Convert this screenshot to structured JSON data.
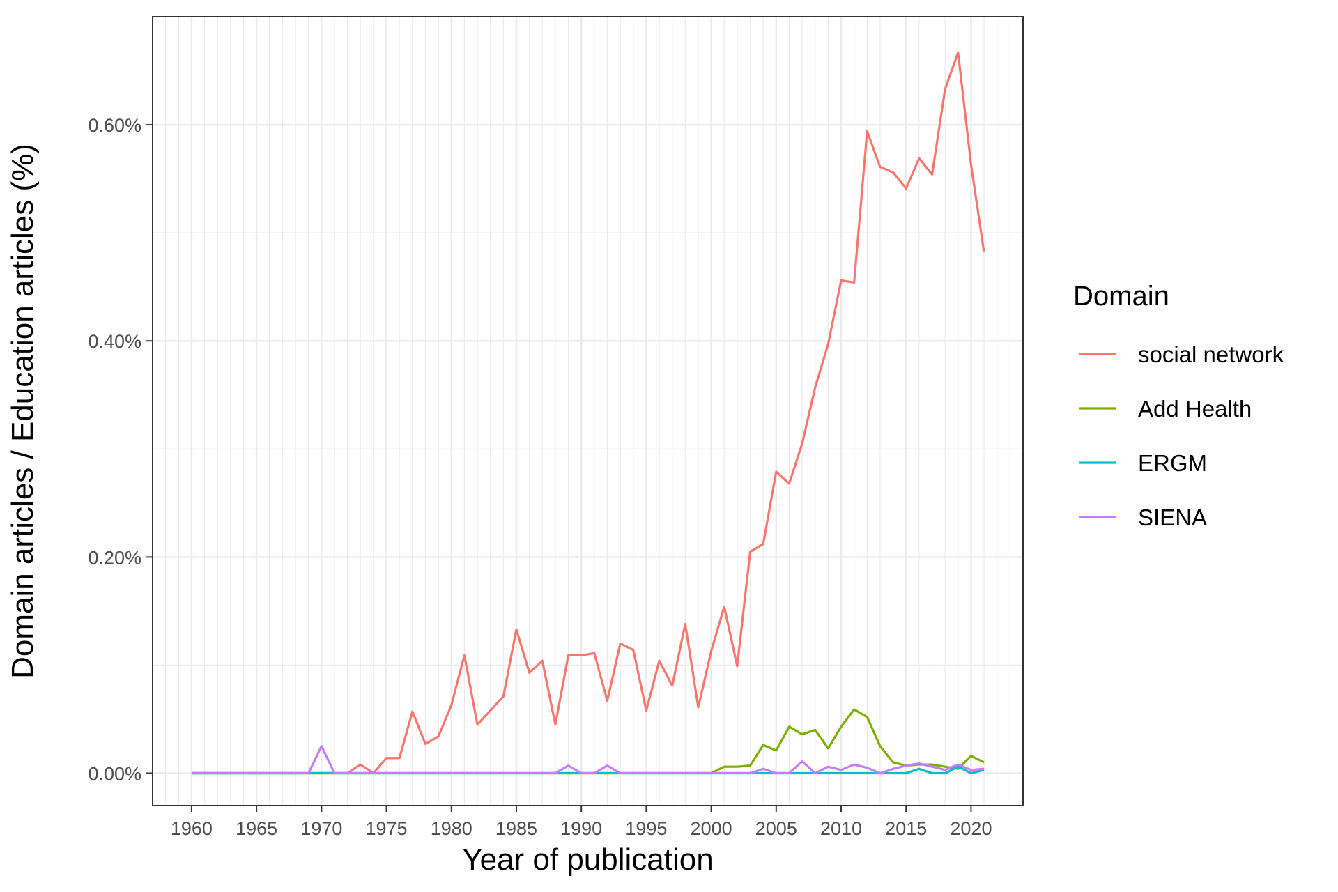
{
  "chart_data": {
    "type": "line",
    "title": "",
    "xlabel": "Year of publication",
    "ylabel": "Domain articles / Education articles (%)",
    "xlim": [
      1957,
      2024
    ],
    "ylim": [
      -0.03,
      0.7
    ],
    "x_ticks": [
      1960,
      1965,
      1970,
      1975,
      1980,
      1985,
      1990,
      1995,
      2000,
      2005,
      2010,
      2015,
      2020
    ],
    "x_tick_labels": [
      "1960",
      "1965",
      "1970",
      "1975",
      "1980",
      "1985",
      "1990",
      "1995",
      "2000",
      "2005",
      "2010",
      "2015",
      "2020"
    ],
    "y_ticks": [
      0,
      0.2,
      0.4,
      0.6
    ],
    "y_tick_labels": [
      "0.00%",
      "0.20%",
      "0.40%",
      "0.60%"
    ],
    "grid": true,
    "legend": {
      "title": "Domain",
      "position": "right"
    },
    "x": [
      1960,
      1961,
      1962,
      1963,
      1964,
      1965,
      1966,
      1967,
      1968,
      1969,
      1970,
      1971,
      1972,
      1973,
      1974,
      1975,
      1976,
      1977,
      1978,
      1979,
      1980,
      1981,
      1982,
      1983,
      1984,
      1985,
      1986,
      1987,
      1988,
      1989,
      1990,
      1991,
      1992,
      1993,
      1994,
      1995,
      1996,
      1997,
      1998,
      1999,
      2000,
      2001,
      2002,
      2003,
      2004,
      2005,
      2006,
      2007,
      2008,
      2009,
      2010,
      2011,
      2012,
      2013,
      2014,
      2015,
      2016,
      2017,
      2018,
      2019,
      2020,
      2021
    ],
    "series": [
      {
        "name": "social network",
        "color": "#F8766D",
        "values": [
          0,
          0,
          0,
          0,
          0,
          0,
          0,
          0,
          0,
          0,
          0,
          0,
          0,
          0.008,
          0,
          0.014,
          0.014,
          0.057,
          0.027,
          0.034,
          0.063,
          0.109,
          0.045,
          0.058,
          0.071,
          0.133,
          0.093,
          0.104,
          0.045,
          0.109,
          0.109,
          0.111,
          0.067,
          0.12,
          0.114,
          0.058,
          0.104,
          0.081,
          0.138,
          0.061,
          0.113,
          0.154,
          0.099,
          0.205,
          0.212,
          0.279,
          0.268,
          0.305,
          0.357,
          0.397,
          0.456,
          0.454,
          0.594,
          0.561,
          0.556,
          0.541,
          0.569,
          0.554,
          0.633,
          0.667,
          0.563,
          0.482
        ]
      },
      {
        "name": "Add Health",
        "color": "#7CAE00",
        "values": [
          0,
          0,
          0,
          0,
          0,
          0,
          0,
          0,
          0,
          0,
          0,
          0,
          0,
          0,
          0,
          0,
          0,
          0,
          0,
          0,
          0,
          0,
          0,
          0,
          0,
          0,
          0,
          0,
          0,
          0,
          0,
          0,
          0,
          0,
          0,
          0,
          0,
          0,
          0,
          0,
          0,
          0.006,
          0.006,
          0.007,
          0.026,
          0.021,
          0.043,
          0.036,
          0.04,
          0.023,
          0.043,
          0.059,
          0.052,
          0.025,
          0.01,
          0.007,
          0.008,
          0.008,
          0.006,
          0.004,
          0.016,
          0.01
        ]
      },
      {
        "name": "ERGM",
        "color": "#00BFC4",
        "values": [
          0,
          0,
          0,
          0,
          0,
          0,
          0,
          0,
          0,
          0,
          0,
          0,
          0,
          0,
          0,
          0,
          0,
          0,
          0,
          0,
          0,
          0,
          0,
          0,
          0,
          0,
          0,
          0,
          0,
          0,
          0,
          0,
          0,
          0,
          0,
          0,
          0,
          0,
          0,
          0,
          0,
          0,
          0,
          0,
          0,
          0,
          0,
          0,
          0,
          0,
          0,
          0,
          0,
          0,
          0,
          0,
          0.004,
          0,
          0,
          0.006,
          0,
          0.003
        ]
      },
      {
        "name": "SIENA",
        "color": "#C77CFF",
        "values": [
          0,
          0,
          0,
          0,
          0,
          0,
          0,
          0,
          0,
          0,
          0.025,
          0,
          0,
          0,
          0,
          0,
          0,
          0,
          0,
          0,
          0,
          0,
          0,
          0,
          0,
          0,
          0,
          0,
          0,
          0.007,
          0,
          0,
          0.007,
          0,
          0,
          0,
          0,
          0,
          0,
          0,
          0,
          0,
          0,
          0,
          0.004,
          0,
          0,
          0.011,
          0,
          0.006,
          0.003,
          0.008,
          0.005,
          0,
          0.004,
          0.007,
          0.009,
          0.006,
          0.003,
          0.008,
          0.003,
          0.004
        ]
      }
    ]
  }
}
